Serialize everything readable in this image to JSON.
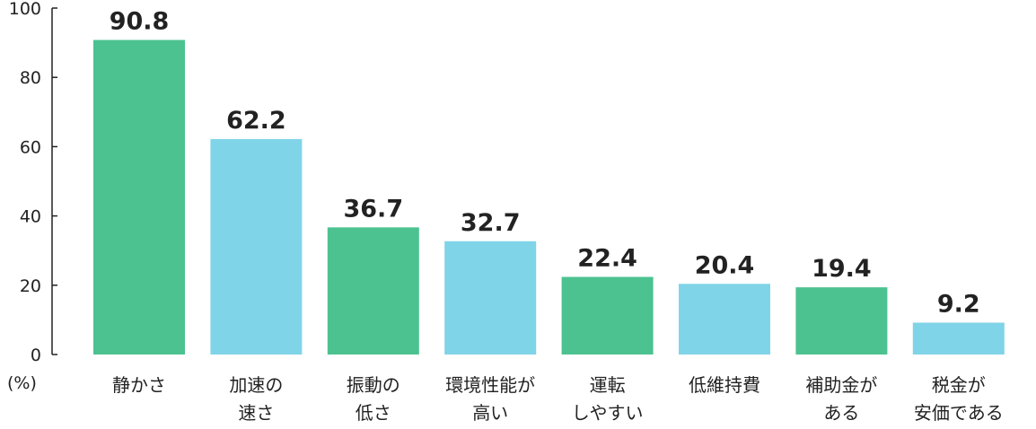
{
  "chart_data": {
    "type": "bar",
    "categories": [
      [
        "静かさ"
      ],
      [
        "加速の",
        "速さ"
      ],
      [
        "振動の",
        "低さ"
      ],
      [
        "環境性能が",
        "高い"
      ],
      [
        "運転",
        "しやすい"
      ],
      [
        "低維持費"
      ],
      [
        "補助金が",
        "ある"
      ],
      [
        "税金が",
        "安価である"
      ]
    ],
    "values": [
      90.8,
      62.2,
      36.7,
      32.7,
      22.4,
      20.4,
      19.4,
      9.2
    ],
    "value_labels": [
      "90.8",
      "62.2",
      "36.7",
      "32.7",
      "22.4",
      "20.4",
      "19.4",
      "9.2"
    ],
    "ylim": [
      0,
      100
    ],
    "yticks": [
      "0",
      "20",
      "40",
      "60",
      "80",
      "100"
    ],
    "ylabel": "(%)",
    "bar_colors": [
      "#4cc290",
      "#80d4e8",
      "#4cc290",
      "#80d4e8",
      "#4cc290",
      "#80d4e8",
      "#4cc290",
      "#80d4e8"
    ],
    "grid": false,
    "legend": "none"
  }
}
